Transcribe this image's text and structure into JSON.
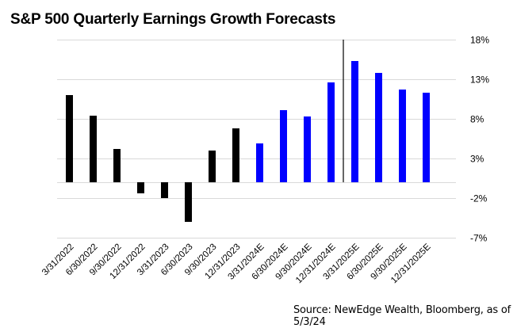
{
  "chart_data": {
    "type": "bar",
    "title": "S&P 500 Quarterly Earnings Growth Forecasts",
    "xlabel": "",
    "ylabel": "",
    "categories": [
      "3/31/2022",
      "6/30/2022",
      "9/30/2022",
      "12/31/2022",
      "3/31/2023",
      "6/30/2023",
      "9/30/2023",
      "12/31/2023",
      "3/31/2024E",
      "6/30/2024E",
      "9/30/2024E",
      "12/31/2024E",
      "3/31/2025E",
      "6/30/2025E",
      "9/30/2025E",
      "12/31/2025E"
    ],
    "values": [
      11.0,
      8.4,
      4.2,
      -1.4,
      -2.0,
      -5.0,
      4.0,
      6.8,
      4.9,
      9.1,
      8.3,
      12.6,
      15.3,
      13.8,
      11.7,
      11.3
    ],
    "series_kind": [
      "actual",
      "actual",
      "actual",
      "actual",
      "actual",
      "actual",
      "actual",
      "actual",
      "estimate",
      "estimate",
      "estimate",
      "estimate",
      "estimate",
      "estimate",
      "estimate",
      "estimate"
    ],
    "colors": {
      "actual": "#000000",
      "estimate": "#0000ff",
      "grid": "#d9d9d9",
      "divider": "#000000"
    },
    "yticks": [
      18,
      13,
      8,
      3,
      -2,
      -7
    ],
    "ytick_labels": [
      "18%",
      "13%",
      "8%",
      "3%",
      "-2%",
      "-7%"
    ],
    "ylim": [
      -7,
      18
    ],
    "y_axis_position": "right",
    "grid": true,
    "legend": "none",
    "divider_after_category": "12/31/2024E",
    "source": "Source: NewEdge Wealth, Bloomberg, as of 5/3/24"
  }
}
